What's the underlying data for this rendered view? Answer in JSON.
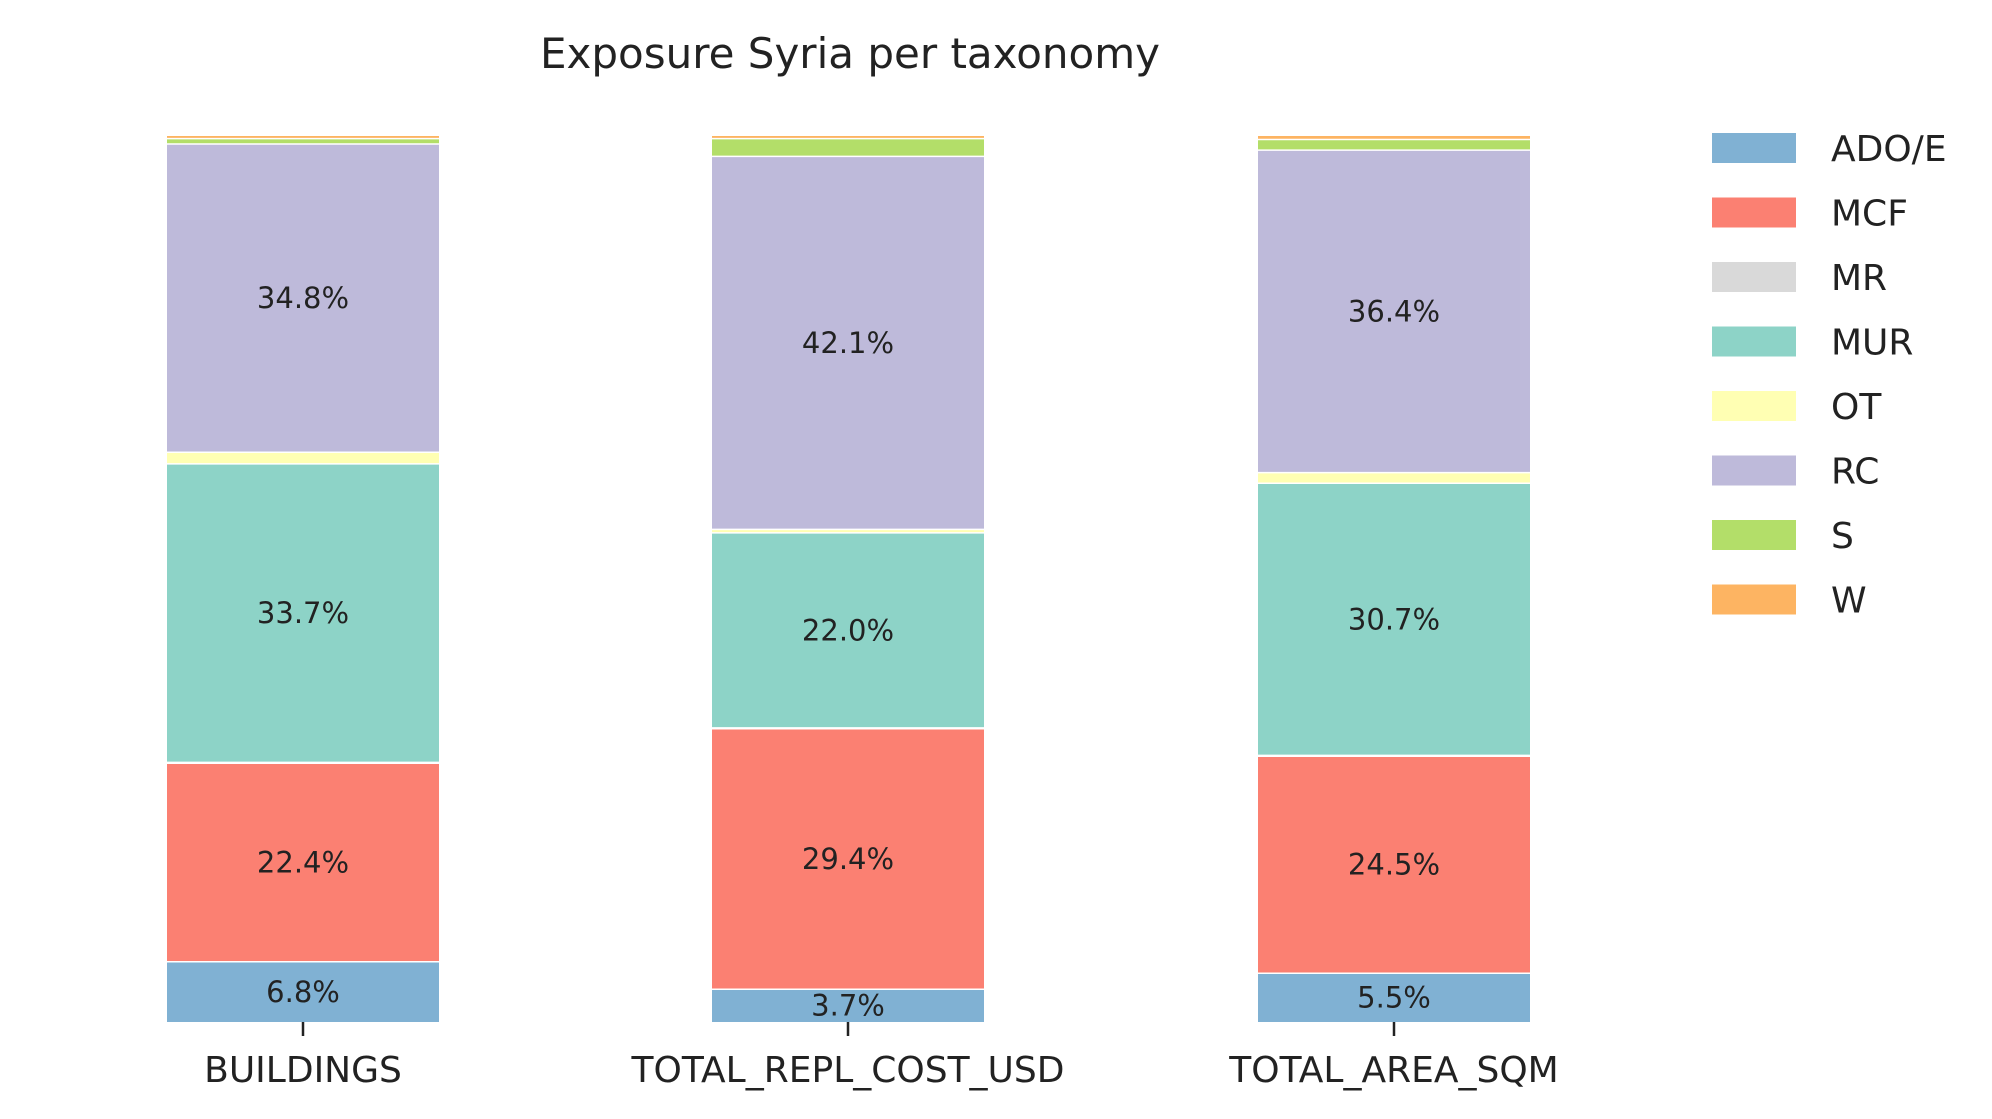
{
  "chart_data": {
    "type": "bar",
    "stacked": true,
    "title": "Exposure Syria per taxonomy",
    "xlabel": "",
    "ylabel": "",
    "ylim": [
      0,
      100
    ],
    "grid": false,
    "legend_position": "right",
    "categories": [
      "BUILDINGS",
      "TOTAL_REPL_COST_USD",
      "TOTAL_AREA_SQM"
    ],
    "series": [
      {
        "name": "ADO/E",
        "color": "#80b1d3",
        "values": [
          6.8,
          3.7,
          5.5
        ],
        "labels": [
          "6.8%",
          "3.7%",
          "5.5%"
        ]
      },
      {
        "name": "MCF",
        "color": "#fb8072",
        "values": [
          22.4,
          29.4,
          24.5
        ],
        "labels": [
          "22.4%",
          "29.4%",
          "24.5%"
        ]
      },
      {
        "name": "MR",
        "color": "#d9d9d9",
        "values": [
          0.1,
          0.1,
          0.1
        ],
        "labels": [
          "",
          "",
          ""
        ]
      },
      {
        "name": "MUR",
        "color": "#8dd3c7",
        "values": [
          33.7,
          22.0,
          30.7
        ],
        "labels": [
          "33.7%",
          "22.0%",
          "30.7%"
        ]
      },
      {
        "name": "OT",
        "color": "#ffffb3",
        "values": [
          1.3,
          0.4,
          1.2
        ],
        "labels": [
          "",
          "",
          ""
        ]
      },
      {
        "name": "RC",
        "color": "#bebada",
        "values": [
          34.8,
          42.1,
          36.4
        ],
        "labels": [
          "34.8%",
          "42.1%",
          "36.4%"
        ]
      },
      {
        "name": "S",
        "color": "#b3de69",
        "values": [
          0.6,
          2.0,
          1.2
        ],
        "labels": [
          "",
          "",
          ""
        ]
      },
      {
        "name": "W",
        "color": "#fdb462",
        "values": [
          0.3,
          0.3,
          0.4
        ],
        "labels": [
          "",
          "",
          ""
        ]
      }
    ]
  }
}
